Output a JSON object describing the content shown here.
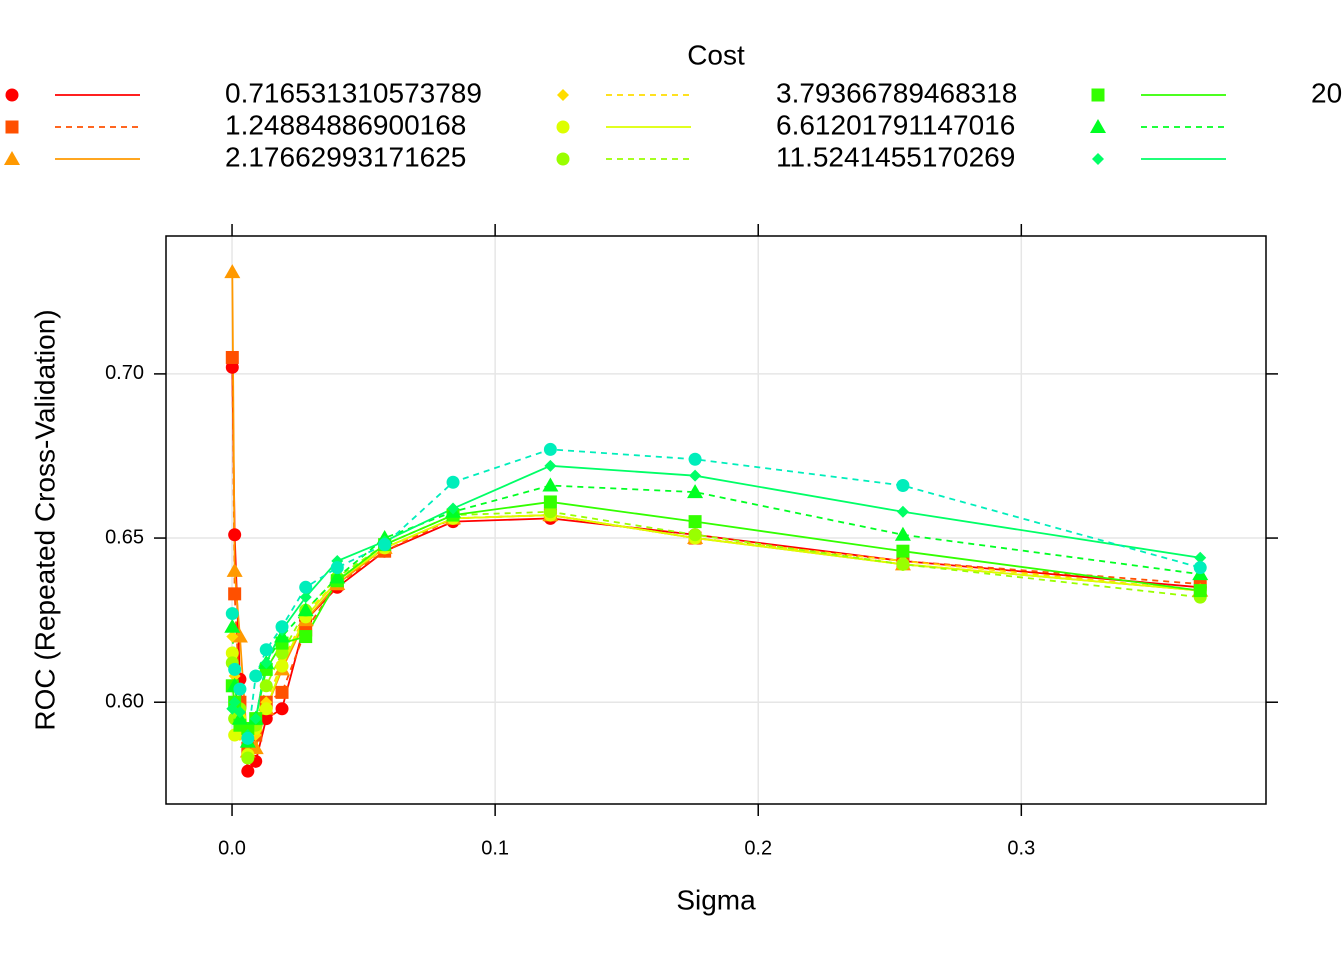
{
  "chart_data": {
    "type": "line",
    "legend_title": "Cost",
    "x_label": "Sigma",
    "y_label": "ROC (Repeated Cross-Validation)",
    "x": [
      0.0001,
      0.001,
      0.003,
      0.006,
      0.009,
      0.013,
      0.019,
      0.028,
      0.04,
      0.058,
      0.084,
      0.121,
      0.176,
      0.255,
      0.368
    ],
    "series": [
      {
        "name": "0.716531310573789",
        "color": "#ff0000",
        "marker": "circle",
        "dash": false,
        "values": [
          0.702,
          0.651,
          0.607,
          0.579,
          0.582,
          0.595,
          0.598,
          0.625,
          0.635,
          0.646,
          0.655,
          0.656,
          0.651,
          0.643,
          0.635
        ]
      },
      {
        "name": "1.24884886900168",
        "color": "#ff5000",
        "marker": "square",
        "dash": true,
        "values": [
          0.705,
          0.633,
          0.6,
          0.586,
          0.59,
          0.6,
          0.603,
          0.622,
          0.636,
          0.646,
          0.656,
          0.657,
          0.65,
          0.643,
          0.636
        ]
      },
      {
        "name": "2.17662993171625",
        "color": "#ff9900",
        "marker": "triangle",
        "dash": false,
        "values": [
          0.731,
          0.64,
          0.62,
          0.585,
          0.586,
          0.598,
          0.61,
          0.625,
          0.636,
          0.647,
          0.656,
          0.657,
          0.65,
          0.642,
          0.634
        ]
      },
      {
        "name": "3.79366789468318",
        "color": "#ffdd00",
        "marker": "diamond",
        "dash": true,
        "values": [
          0.62,
          0.608,
          0.59,
          0.588,
          0.59,
          0.6,
          0.612,
          0.627,
          0.637,
          0.647,
          0.656,
          0.657,
          0.65,
          0.643,
          0.634
        ]
      },
      {
        "name": "6.61201791147016",
        "color": "#ddff00",
        "marker": "circle",
        "dash": false,
        "values": [
          0.615,
          0.59,
          0.595,
          0.584,
          0.592,
          0.598,
          0.611,
          0.626,
          0.637,
          0.647,
          0.656,
          0.657,
          0.65,
          0.642,
          0.634
        ]
      },
      {
        "name": "11.5241455170269",
        "color": "#99ff00",
        "marker": "circle",
        "dash": true,
        "values": [
          0.612,
          0.595,
          0.598,
          0.583,
          0.593,
          0.605,
          0.615,
          0.628,
          0.638,
          0.648,
          0.657,
          0.658,
          0.651,
          0.642,
          0.632
        ]
      },
      {
        "name": "20",
        "color": "#33ff00",
        "marker": "square",
        "dash": false,
        "values": [
          0.605,
          0.6,
          0.593,
          0.592,
          0.595,
          0.61,
          0.618,
          0.62,
          0.637,
          0.648,
          0.657,
          0.661,
          0.655,
          0.646,
          0.634
        ]
      },
      {
        "color": "#00ff22",
        "marker": "triangle",
        "dash": true,
        "values": [
          0.623,
          0.605,
          0.595,
          0.588,
          0.595,
          0.612,
          0.62,
          0.628,
          0.638,
          0.65,
          0.658,
          0.666,
          0.664,
          0.651,
          0.639
        ]
      },
      {
        "color": "#00ff66",
        "marker": "diamond",
        "dash": false,
        "values": [
          0.598,
          0.6,
          0.597,
          0.59,
          0.595,
          0.612,
          0.622,
          0.632,
          0.643,
          0.649,
          0.659,
          0.672,
          0.669,
          0.658,
          0.644
        ]
      },
      {
        "color": "#00eebb",
        "marker": "circle",
        "dash": true,
        "values": [
          0.627,
          0.61,
          0.604,
          0.589,
          0.608,
          0.616,
          0.623,
          0.635,
          0.641,
          0.648,
          0.667,
          0.677,
          0.674,
          0.666,
          0.641
        ]
      }
    ],
    "xlim": [
      -0.0251,
      0.393
    ],
    "ylim": [
      0.569,
      0.742
    ],
    "xticks": [
      {
        "value": 0,
        "label": "0.0"
      },
      0.1,
      0.2,
      0.3
    ],
    "yticks": [
      {
        "value": 0.6,
        "label": "0.60"
      },
      {
        "value": 0.65,
        "label": "0.65"
      },
      {
        "value": 0.7,
        "label": "0.70"
      }
    ],
    "grid": true,
    "legend_position": "top"
  }
}
